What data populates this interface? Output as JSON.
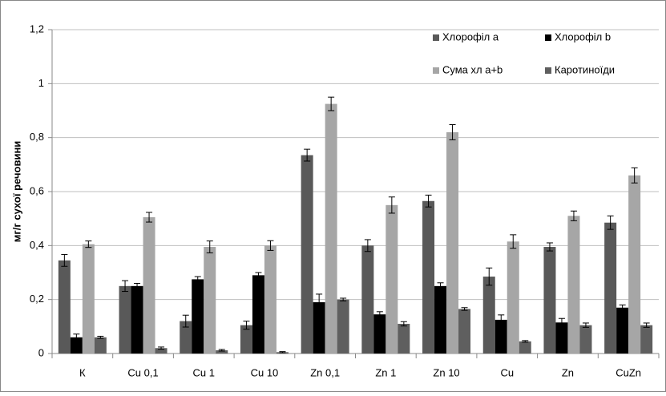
{
  "chart_data": {
    "type": "bar",
    "ylabel": "мг/г сухої речовини",
    "categories": [
      "К",
      "Cu 0,1",
      "Cu 1",
      "Cu 10",
      "Zn 0,1",
      "Zn 1",
      "Zn 10",
      "Cu",
      "Zn",
      "CuZn"
    ],
    "series": [
      {
        "name": "Хлорофіл a",
        "color": "#595959",
        "values": [
          0.345,
          0.25,
          0.12,
          0.105,
          0.735,
          0.4,
          0.565,
          0.285,
          0.395,
          0.485
        ],
        "errors": [
          0.022,
          0.02,
          0.022,
          0.015,
          0.022,
          0.022,
          0.022,
          0.032,
          0.015,
          0.025
        ]
      },
      {
        "name": "Хлорофіл b",
        "color": "#000000",
        "values": [
          0.06,
          0.25,
          0.275,
          0.29,
          0.19,
          0.145,
          0.25,
          0.125,
          0.115,
          0.17
        ],
        "errors": [
          0.012,
          0.01,
          0.01,
          0.01,
          0.03,
          0.01,
          0.012,
          0.018,
          0.015,
          0.01
        ]
      },
      {
        "name": "Сума хл a+b",
        "color": "#a6a6a6",
        "values": [
          0.405,
          0.505,
          0.395,
          0.4,
          0.925,
          0.55,
          0.82,
          0.415,
          0.51,
          0.66
        ],
        "errors": [
          0.012,
          0.018,
          0.022,
          0.018,
          0.025,
          0.03,
          0.028,
          0.025,
          0.018,
          0.028
        ]
      },
      {
        "name": "Каротиноїди",
        "color": "#5f5f5f",
        "values": [
          0.06,
          0.02,
          0.012,
          0.005,
          0.2,
          0.11,
          0.165,
          0.045,
          0.105,
          0.105
        ],
        "errors": [
          0.004,
          0.004,
          0.003,
          0.002,
          0.005,
          0.008,
          0.005,
          0.003,
          0.008,
          0.008
        ]
      }
    ],
    "ylim": [
      0,
      1.2
    ],
    "yticks": [
      0,
      {
        "value": 0.2,
        "label": "0,2"
      },
      {
        "value": 0.4,
        "label": "0,4"
      },
      {
        "value": 0.6,
        "label": "0,6"
      },
      {
        "value": 0.8,
        "label": "0,8"
      },
      1,
      {
        "value": 1.2,
        "label": "1,2"
      }
    ],
    "grid": true
  }
}
